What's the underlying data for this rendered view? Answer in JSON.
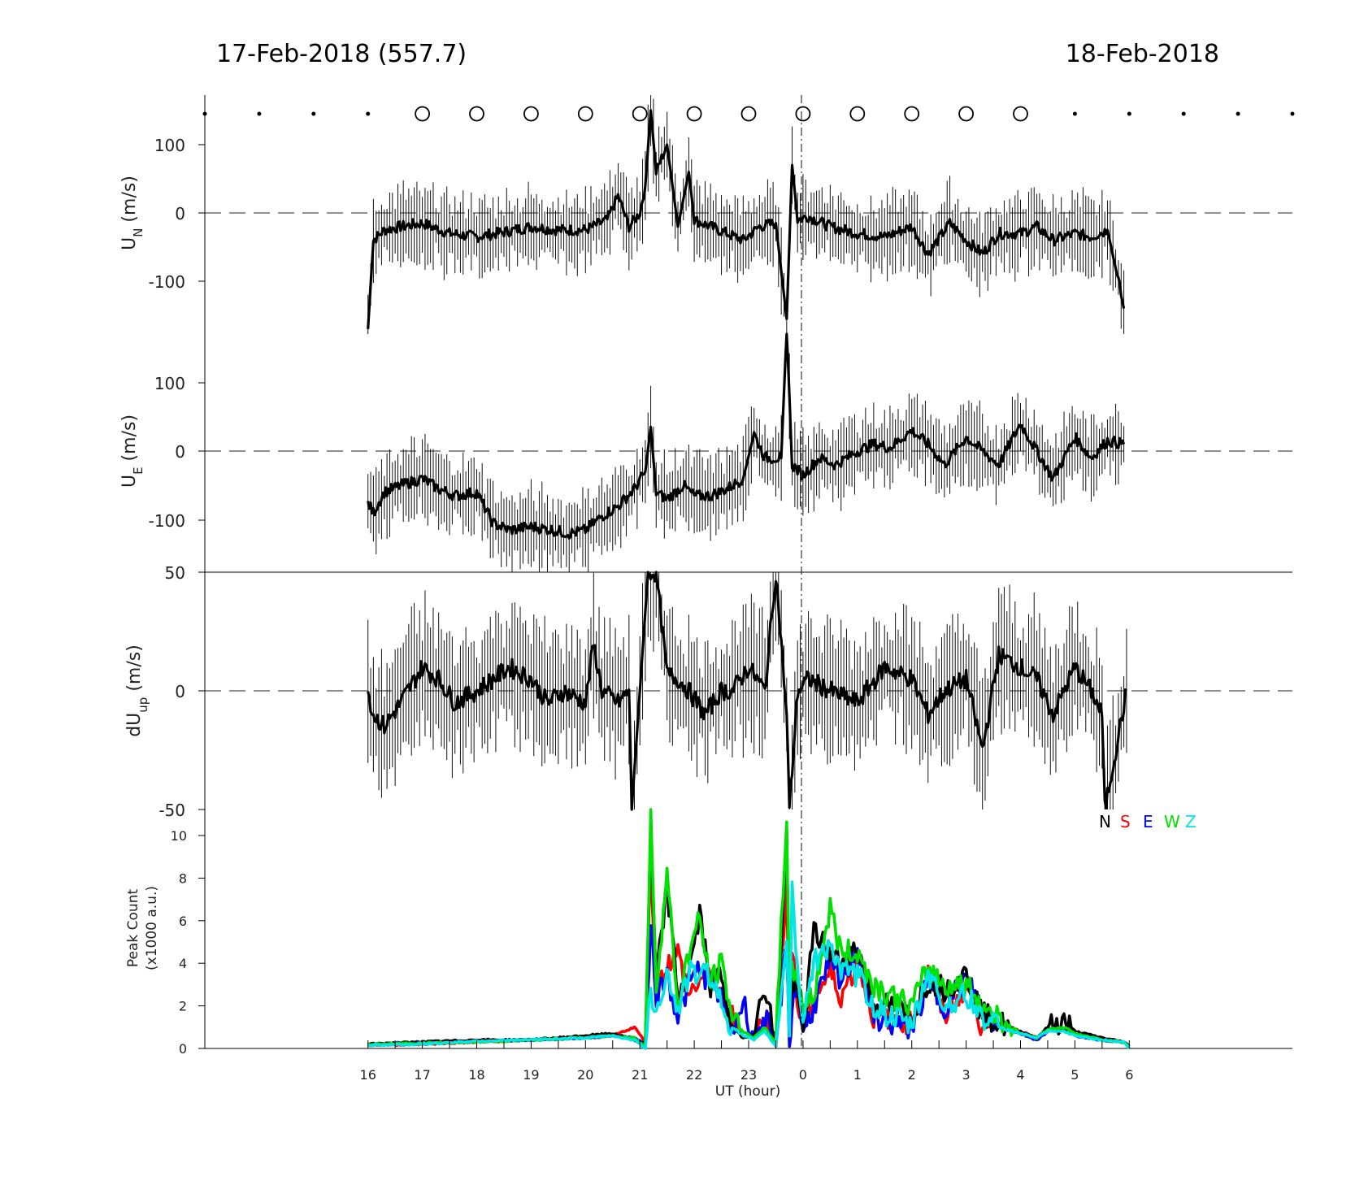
{
  "titles": {
    "left": "17-Feb-2018 (557.7)",
    "right": "18-Feb-2018"
  },
  "colors": {
    "N": "#000000",
    "S": "#ff0000",
    "E": "#0000ff",
    "W": "#00e000",
    "Z": "#00e5e5"
  },
  "chart_data": [
    {
      "type": "line",
      "panel": "UN",
      "ylabel": "U_N (m/s)",
      "yticks": [
        "100",
        "0",
        "-100"
      ],
      "ylim": [
        -175,
        175
      ],
      "xlim_hours": [
        13,
        33
      ],
      "x_hours": [
        16.0,
        16.1,
        16.3,
        16.6,
        17.0,
        17.5,
        18.0,
        18.5,
        19.0,
        19.5,
        20.0,
        20.4,
        20.6,
        20.8,
        21.0,
        21.1,
        21.2,
        21.3,
        21.5,
        21.7,
        21.9,
        22.0,
        22.3,
        22.6,
        22.9,
        23.2,
        23.5,
        23.7,
        23.8,
        23.9,
        24.1,
        24.5,
        25.0,
        25.5,
        26.0,
        26.3,
        26.7,
        27.0,
        27.3,
        27.6,
        28.0,
        28.3,
        28.6,
        29.0,
        29.3,
        29.6,
        29.8,
        29.9
      ],
      "values": [
        -170,
        -40,
        -25,
        -20,
        -15,
        -30,
        -35,
        -28,
        -20,
        -25,
        -25,
        -10,
        25,
        -20,
        0,
        40,
        150,
        60,
        100,
        -20,
        60,
        -10,
        -20,
        -30,
        -40,
        -20,
        -15,
        -155,
        70,
        -10,
        -5,
        -20,
        -30,
        -35,
        -20,
        -60,
        -15,
        -40,
        -60,
        -30,
        -30,
        -20,
        -40,
        -30,
        -35,
        -25,
        -100,
        -140
      ],
      "errorbar_range_m_s": 50
    },
    {
      "type": "line",
      "panel": "UE",
      "ylabel": "U_E (m/s)",
      "yticks": [
        "100",
        "0",
        "-100"
      ],
      "ylim": [
        -175,
        175
      ],
      "xlim_hours": [
        13,
        33
      ],
      "x_hours": [
        16.0,
        16.1,
        16.3,
        16.6,
        17.0,
        17.3,
        17.6,
        18.0,
        18.3,
        18.6,
        19.0,
        19.4,
        19.7,
        20.0,
        20.3,
        20.6,
        20.9,
        21.1,
        21.2,
        21.3,
        21.5,
        21.8,
        22.0,
        22.3,
        22.6,
        22.9,
        23.1,
        23.3,
        23.6,
        23.7,
        23.8,
        24.0,
        24.3,
        24.6,
        25.0,
        25.3,
        25.6,
        26.0,
        26.3,
        26.6,
        27.0,
        27.3,
        27.6,
        28.0,
        28.3,
        28.6,
        29.0,
        29.3,
        29.6,
        29.9
      ],
      "values": [
        -75,
        -90,
        -60,
        -50,
        -40,
        -55,
        -65,
        -60,
        -105,
        -115,
        -110,
        -115,
        -120,
        -115,
        -95,
        -80,
        -55,
        -30,
        35,
        -60,
        -70,
        -50,
        -65,
        -65,
        -55,
        -40,
        25,
        -10,
        -10,
        180,
        -20,
        -35,
        -10,
        -20,
        0,
        10,
        5,
        30,
        10,
        -20,
        20,
        0,
        -20,
        40,
        0,
        -40,
        20,
        -10,
        15,
        10
      ],
      "errorbar_range_m_s": 50
    },
    {
      "type": "line",
      "panel": "dUup",
      "ylabel": "dU_up (m/s)",
      "yticks": [
        "50",
        "0",
        "-50"
      ],
      "ylim": [
        -50,
        50
      ],
      "xlim_hours": [
        13,
        33
      ],
      "x_hours": [
        16.0,
        16.1,
        16.3,
        16.6,
        17.0,
        17.3,
        17.6,
        18.0,
        18.3,
        18.6,
        19.0,
        19.3,
        19.6,
        20.0,
        20.15,
        20.3,
        20.6,
        20.8,
        20.85,
        21.15,
        21.2,
        21.3,
        21.5,
        21.7,
        21.9,
        22.2,
        22.5,
        22.7,
        23.0,
        23.3,
        23.5,
        23.7,
        23.75,
        23.9,
        24.1,
        24.5,
        25.0,
        25.5,
        26.0,
        26.3,
        26.6,
        27.0,
        27.3,
        27.6,
        28.0,
        28.3,
        28.6,
        29.0,
        29.3,
        29.5,
        29.55,
        29.95
      ],
      "values": [
        0,
        -10,
        -15,
        -5,
        10,
        5,
        -5,
        0,
        5,
        10,
        5,
        -5,
        0,
        -5,
        20,
        0,
        -5,
        0,
        -50,
        50,
        50,
        50,
        7,
        5,
        0,
        -10,
        0,
        0,
        10,
        0,
        50,
        -10,
        -50,
        0,
        5,
        0,
        -5,
        10,
        5,
        -10,
        0,
        5,
        -25,
        15,
        10,
        5,
        -10,
        10,
        0,
        -10,
        -50,
        0
      ],
      "errorbar_range_m_s": 25
    },
    {
      "type": "line",
      "panel": "peak_count",
      "ylabel": "Peak Count",
      "ylabel2": "(x1000 a.u.)",
      "yticks": [
        "10",
        "8",
        "6",
        "4",
        "2",
        "0"
      ],
      "ylim": [
        0,
        11
      ],
      "xlim_hours": [
        13,
        33
      ],
      "xlabel": "UT (hour)",
      "xticks_hours": [
        16,
        17,
        18,
        19,
        20,
        21,
        22,
        23,
        24,
        25,
        26,
        27,
        28,
        29,
        30
      ],
      "xtick_labels": [
        "16",
        "17",
        "18",
        "19",
        "20",
        "21",
        "22",
        "23",
        "0",
        "1",
        "2",
        "3",
        "4",
        "5",
        "6"
      ],
      "legend": [
        "N",
        "S",
        "E",
        "W",
        "Z"
      ],
      "legend_loc": "top-right",
      "x_hours": [
        16.0,
        17.0,
        18.0,
        19.0,
        20.0,
        20.5,
        20.9,
        21.1,
        21.2,
        21.3,
        21.5,
        21.7,
        21.9,
        22.1,
        22.3,
        22.5,
        22.7,
        22.9,
        23.1,
        23.3,
        23.5,
        23.7,
        23.75,
        23.8,
        23.9,
        24.0,
        24.2,
        24.5,
        24.7,
        25.0,
        25.3,
        25.6,
        26.0,
        26.3,
        26.6,
        27.0,
        27.3,
        27.6,
        28.0,
        28.3,
        28.5,
        28.8,
        29.0,
        29.5,
        29.9,
        30.0
      ],
      "series": [
        {
          "name": "N",
          "values": [
            0.2,
            0.3,
            0.4,
            0.4,
            0.6,
            0.7,
            0.4,
            0.2,
            10,
            3,
            7.6,
            2.5,
            3.5,
            6.3,
            3.0,
            3.5,
            1.0,
            0.5,
            0.6,
            3.0,
            0.2,
            10,
            1.0,
            3.0,
            2.5,
            0.8,
            5.5,
            4.5,
            4.0,
            4.8,
            2.0,
            2.0,
            1.5,
            3.2,
            2.8,
            3.5,
            1.6,
            1.2,
            0.8,
            0.5,
            1.0,
            1.3,
            0.8,
            0.5,
            0.3,
            0.1
          ]
        },
        {
          "name": "S",
          "values": [
            0.15,
            0.2,
            0.3,
            0.4,
            0.5,
            0.6,
            1.0,
            0.3,
            9,
            2.5,
            4.0,
            4.5,
            2.5,
            3.2,
            3.5,
            2.0,
            1.5,
            0.5,
            0.7,
            1.5,
            0.3,
            8,
            1.0,
            4.5,
            2.0,
            1.0,
            2.5,
            3.5,
            2.5,
            4.0,
            1.5,
            1.5,
            1.2,
            3.5,
            1.5,
            3.0,
            1.0,
            1.0,
            0.8,
            0.5,
            0.8,
            0.9,
            0.7,
            0.4,
            0.3,
            0.1
          ]
        },
        {
          "name": "E",
          "values": [
            0.2,
            0.3,
            0.35,
            0.4,
            0.5,
            0.6,
            0.5,
            0.2,
            6,
            2.5,
            3.5,
            1.5,
            3.0,
            3.8,
            3.0,
            2.5,
            0.8,
            2.2,
            0.5,
            1.5,
            0.1,
            5.0,
            0.1,
            2.0,
            3.0,
            0.8,
            2.0,
            4.0,
            3.0,
            4.8,
            1.5,
            1.2,
            1.0,
            3.0,
            2.0,
            3.3,
            1.8,
            1.0,
            0.7,
            0.4,
            0.8,
            0.9,
            0.6,
            0.4,
            0.3,
            0.1
          ]
        },
        {
          "name": "W",
          "values": [
            0.2,
            0.25,
            0.3,
            0.4,
            0.5,
            0.6,
            0.5,
            0.1,
            11,
            3,
            8.2,
            2.0,
            4.5,
            6.1,
            3.0,
            4.0,
            1.5,
            0.8,
            0.5,
            1.0,
            0.2,
            11,
            2.0,
            3.5,
            3.5,
            2.0,
            2.5,
            6.6,
            4.5,
            4.5,
            3.0,
            2.5,
            2.0,
            3.8,
            3.0,
            3.0,
            2.0,
            1.5,
            0.7,
            0.5,
            0.9,
            1.0,
            0.7,
            0.4,
            0.3,
            0.1
          ]
        },
        {
          "name": "Z",
          "values": [
            0.15,
            0.2,
            0.35,
            0.4,
            0.5,
            0.6,
            0.4,
            0.0,
            2.5,
            2.0,
            3.5,
            1.8,
            3.5,
            3.5,
            3.5,
            2.0,
            1.0,
            0.6,
            0.4,
            0.8,
            0.1,
            5.3,
            0.6,
            7.7,
            3.5,
            1.5,
            4.0,
            5.0,
            3.5,
            3.5,
            2.0,
            1.5,
            1.0,
            3.6,
            2.0,
            2.5,
            1.5,
            1.0,
            0.7,
            0.5,
            0.8,
            0.8,
            0.6,
            0.4,
            0.3,
            0.0
          ]
        }
      ]
    }
  ],
  "markers": {
    "dots_hours": [
      13,
      14,
      15,
      16,
      29,
      30,
      31,
      32,
      33
    ],
    "circles_hours": [
      17,
      18,
      19,
      20,
      21,
      22,
      23,
      24,
      25,
      26,
      27,
      28
    ]
  }
}
